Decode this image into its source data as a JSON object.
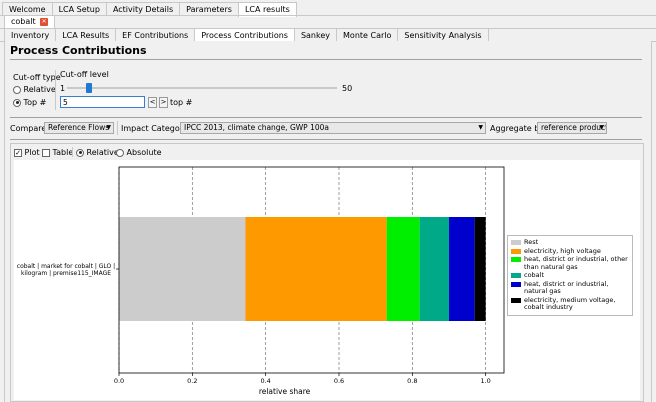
{
  "main_tabs": [
    "Welcome",
    "LCA Setup",
    "Activity Details",
    "Parameters",
    "LCA results"
  ],
  "doc_tab": {
    "label": "cobalt"
  },
  "sub_tabs": [
    "Inventory",
    "LCA Results",
    "EF Contributions",
    "Process Contributions",
    "Sankey",
    "Monte Carlo",
    "Sensitivity Analysis"
  ],
  "page_title": "Process Contributions",
  "cutoff": {
    "type_label": "Cut-off type",
    "relative_label": "Relative",
    "top_label": "Top #",
    "level_label": "Cut-off level",
    "slider_min": "1",
    "slider_max": "50",
    "slider_value": 5,
    "input_value": "5",
    "dec_label": "<",
    "inc_label": ">",
    "unit_label": "top #"
  },
  "controls": {
    "compare_label": "Compare:",
    "compare_value": "Reference Flows",
    "impact_label": "Impact Category:",
    "impact_value": "IPCC 2013, climate change, GWP 100a",
    "aggregate_label": "Aggregate by:",
    "aggregate_value": "reference product"
  },
  "view": {
    "plot_label": "Plot",
    "table_label": "Table",
    "relative_label": "Relative",
    "absolute_label": "Absolute"
  },
  "chart_data": {
    "type": "bar",
    "orientation": "horizontal-stacked",
    "categories": [
      "cobalt | market for cobalt | GLO | kilogram | premise115_IMAGE"
    ],
    "series": [
      {
        "name": "Rest",
        "values": [
          0.345
        ],
        "color": "#cccccc"
      },
      {
        "name": "electricity, high voltage",
        "values": [
          0.385
        ],
        "color": "#ff9900"
      },
      {
        "name": "heat, district or industrial, other than natural gas",
        "values": [
          0.09
        ],
        "color": "#00ee00"
      },
      {
        "name": "cobalt",
        "values": [
          0.08
        ],
        "color": "#00aa88"
      },
      {
        "name": "heat, district or industrial, natural gas",
        "values": [
          0.07
        ],
        "color": "#0000cc"
      },
      {
        "name": "electricity, medium voltage, cobalt industry",
        "values": [
          0.03
        ],
        "color": "#000000"
      }
    ],
    "xlabel": "relative share",
    "xlim": [
      0,
      1.05
    ],
    "xticks": [
      "0.0",
      "0.2",
      "0.4",
      "0.6",
      "0.8",
      "1.0"
    ],
    "grid": "vertical-dashed",
    "legend_position": "right"
  }
}
